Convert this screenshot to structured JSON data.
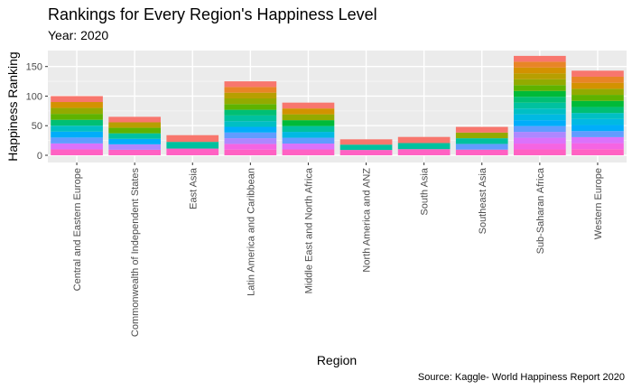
{
  "chart_data": {
    "type": "bar",
    "stacked": true,
    "title": "Rankings for Every Region's Happiness Level",
    "subtitle": "Year: 2020",
    "caption": "Source: Kaggle- World Happiness Report 2020",
    "xlabel": "Region",
    "ylabel": "Happiness Ranking",
    "ylim": [
      0,
      177
    ],
    "yticks": [
      0,
      50,
      100,
      150
    ],
    "grid": true,
    "legend": "none",
    "categories": [
      "Central and Eastern Europe",
      "Commonwealth of Independent States",
      "East Asia",
      "Latin America and Caribbean",
      "Middle East and North Africa",
      "North America and ANZ",
      "South Asia",
      "Southeast Asia",
      "Sub-Saharan Africa",
      "Western Europe"
    ],
    "totals": [
      100,
      65,
      34,
      125,
      89,
      27,
      31,
      48,
      168,
      143
    ],
    "palette": [
      "#F8766D",
      "#E88526",
      "#D39200",
      "#B79F00",
      "#93AA00",
      "#5EB300",
      "#00BA38",
      "#00BF74",
      "#00C19F",
      "#00BFC4",
      "#00B9E3",
      "#00ADFA",
      "#619CFF",
      "#AE87FF",
      "#DB72FB",
      "#F564E3",
      "#FF61C3"
    ]
  }
}
